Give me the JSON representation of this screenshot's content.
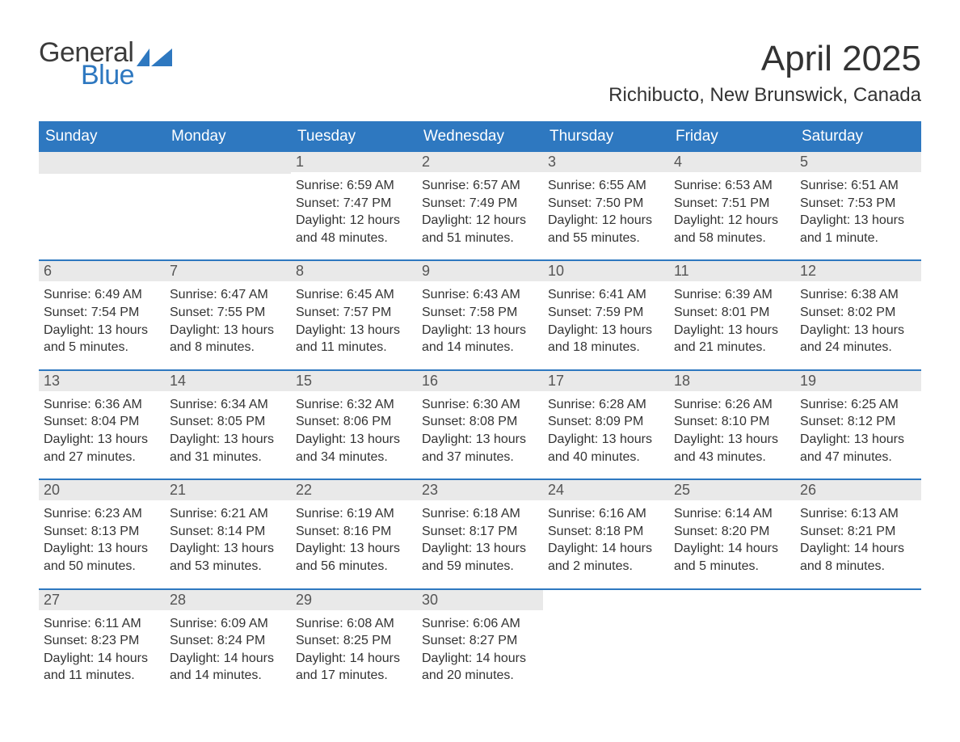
{
  "branding": {
    "logo_text_1": "General",
    "logo_text_2": "Blue",
    "logo_color_1": "#3b3b3b",
    "logo_color_2": "#2e78c0",
    "flag_color": "#2e78c0"
  },
  "header": {
    "month_title": "April 2025",
    "location": "Richibucto, New Brunswick, Canada"
  },
  "calendar": {
    "type": "calendar-table",
    "header_bg": "#2e78c0",
    "header_fg": "#ffffff",
    "daynum_bg": "#e9e9e9",
    "week_border_color": "#2e78c0",
    "body_fontsize": 16,
    "header_fontsize": 19,
    "columns": [
      "Sunday",
      "Monday",
      "Tuesday",
      "Wednesday",
      "Thursday",
      "Friday",
      "Saturday"
    ],
    "weeks": [
      [
        {
          "n": "",
          "rise": "",
          "set": "",
          "day": ""
        },
        {
          "n": "",
          "rise": "",
          "set": "",
          "day": ""
        },
        {
          "n": "1",
          "rise": "Sunrise: 6:59 AM",
          "set": "Sunset: 7:47 PM",
          "day": "Daylight: 12 hours and 48 minutes."
        },
        {
          "n": "2",
          "rise": "Sunrise: 6:57 AM",
          "set": "Sunset: 7:49 PM",
          "day": "Daylight: 12 hours and 51 minutes."
        },
        {
          "n": "3",
          "rise": "Sunrise: 6:55 AM",
          "set": "Sunset: 7:50 PM",
          "day": "Daylight: 12 hours and 55 minutes."
        },
        {
          "n": "4",
          "rise": "Sunrise: 6:53 AM",
          "set": "Sunset: 7:51 PM",
          "day": "Daylight: 12 hours and 58 minutes."
        },
        {
          "n": "5",
          "rise": "Sunrise: 6:51 AM",
          "set": "Sunset: 7:53 PM",
          "day": "Daylight: 13 hours and 1 minute."
        }
      ],
      [
        {
          "n": "6",
          "rise": "Sunrise: 6:49 AM",
          "set": "Sunset: 7:54 PM",
          "day": "Daylight: 13 hours and 5 minutes."
        },
        {
          "n": "7",
          "rise": "Sunrise: 6:47 AM",
          "set": "Sunset: 7:55 PM",
          "day": "Daylight: 13 hours and 8 minutes."
        },
        {
          "n": "8",
          "rise": "Sunrise: 6:45 AM",
          "set": "Sunset: 7:57 PM",
          "day": "Daylight: 13 hours and 11 minutes."
        },
        {
          "n": "9",
          "rise": "Sunrise: 6:43 AM",
          "set": "Sunset: 7:58 PM",
          "day": "Daylight: 13 hours and 14 minutes."
        },
        {
          "n": "10",
          "rise": "Sunrise: 6:41 AM",
          "set": "Sunset: 7:59 PM",
          "day": "Daylight: 13 hours and 18 minutes."
        },
        {
          "n": "11",
          "rise": "Sunrise: 6:39 AM",
          "set": "Sunset: 8:01 PM",
          "day": "Daylight: 13 hours and 21 minutes."
        },
        {
          "n": "12",
          "rise": "Sunrise: 6:38 AM",
          "set": "Sunset: 8:02 PM",
          "day": "Daylight: 13 hours and 24 minutes."
        }
      ],
      [
        {
          "n": "13",
          "rise": "Sunrise: 6:36 AM",
          "set": "Sunset: 8:04 PM",
          "day": "Daylight: 13 hours and 27 minutes."
        },
        {
          "n": "14",
          "rise": "Sunrise: 6:34 AM",
          "set": "Sunset: 8:05 PM",
          "day": "Daylight: 13 hours and 31 minutes."
        },
        {
          "n": "15",
          "rise": "Sunrise: 6:32 AM",
          "set": "Sunset: 8:06 PM",
          "day": "Daylight: 13 hours and 34 minutes."
        },
        {
          "n": "16",
          "rise": "Sunrise: 6:30 AM",
          "set": "Sunset: 8:08 PM",
          "day": "Daylight: 13 hours and 37 minutes."
        },
        {
          "n": "17",
          "rise": "Sunrise: 6:28 AM",
          "set": "Sunset: 8:09 PM",
          "day": "Daylight: 13 hours and 40 minutes."
        },
        {
          "n": "18",
          "rise": "Sunrise: 6:26 AM",
          "set": "Sunset: 8:10 PM",
          "day": "Daylight: 13 hours and 43 minutes."
        },
        {
          "n": "19",
          "rise": "Sunrise: 6:25 AM",
          "set": "Sunset: 8:12 PM",
          "day": "Daylight: 13 hours and 47 minutes."
        }
      ],
      [
        {
          "n": "20",
          "rise": "Sunrise: 6:23 AM",
          "set": "Sunset: 8:13 PM",
          "day": "Daylight: 13 hours and 50 minutes."
        },
        {
          "n": "21",
          "rise": "Sunrise: 6:21 AM",
          "set": "Sunset: 8:14 PM",
          "day": "Daylight: 13 hours and 53 minutes."
        },
        {
          "n": "22",
          "rise": "Sunrise: 6:19 AM",
          "set": "Sunset: 8:16 PM",
          "day": "Daylight: 13 hours and 56 minutes."
        },
        {
          "n": "23",
          "rise": "Sunrise: 6:18 AM",
          "set": "Sunset: 8:17 PM",
          "day": "Daylight: 13 hours and 59 minutes."
        },
        {
          "n": "24",
          "rise": "Sunrise: 6:16 AM",
          "set": "Sunset: 8:18 PM",
          "day": "Daylight: 14 hours and 2 minutes."
        },
        {
          "n": "25",
          "rise": "Sunrise: 6:14 AM",
          "set": "Sunset: 8:20 PM",
          "day": "Daylight: 14 hours and 5 minutes."
        },
        {
          "n": "26",
          "rise": "Sunrise: 6:13 AM",
          "set": "Sunset: 8:21 PM",
          "day": "Daylight: 14 hours and 8 minutes."
        }
      ],
      [
        {
          "n": "27",
          "rise": "Sunrise: 6:11 AM",
          "set": "Sunset: 8:23 PM",
          "day": "Daylight: 14 hours and 11 minutes."
        },
        {
          "n": "28",
          "rise": "Sunrise: 6:09 AM",
          "set": "Sunset: 8:24 PM",
          "day": "Daylight: 14 hours and 14 minutes."
        },
        {
          "n": "29",
          "rise": "Sunrise: 6:08 AM",
          "set": "Sunset: 8:25 PM",
          "day": "Daylight: 14 hours and 17 minutes."
        },
        {
          "n": "30",
          "rise": "Sunrise: 6:06 AM",
          "set": "Sunset: 8:27 PM",
          "day": "Daylight: 14 hours and 20 minutes."
        },
        {
          "n": "",
          "rise": "",
          "set": "",
          "day": ""
        },
        {
          "n": "",
          "rise": "",
          "set": "",
          "day": ""
        },
        {
          "n": "",
          "rise": "",
          "set": "",
          "day": ""
        }
      ]
    ]
  }
}
